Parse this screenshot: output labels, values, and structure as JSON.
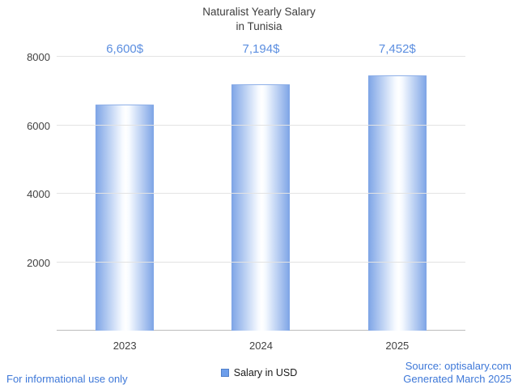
{
  "chart_data": {
    "type": "bar",
    "title": "Naturalist Yearly Salary\nin Tunisia",
    "categories": [
      "2023",
      "2024",
      "2025"
    ],
    "values": [
      6600,
      7194,
      7452
    ],
    "value_labels": [
      "6,600$",
      "7,194$",
      "7,452$"
    ],
    "series": [
      {
        "name": "Salary in USD",
        "values": [
          6600,
          7194,
          7452
        ]
      }
    ],
    "xlabel": "",
    "ylabel": "",
    "ylim": [
      0,
      8000
    ],
    "yticks": [
      2000,
      4000,
      6000,
      8000
    ],
    "grid": true,
    "legend_position": "bottom",
    "colors": {
      "bar_edge": "#7da4e6",
      "bar_center": "#f6faff",
      "value_label": "#5b8ee0",
      "legend_swatch": "#6d9eeb",
      "gridline": "#e3e3e3",
      "baseline": "#bdbdbd",
      "title": "#3d3d3d",
      "axis_text": "#424242"
    }
  },
  "legend": {
    "label": "Salary in USD"
  },
  "footer": {
    "disclaimer": "For informational use only",
    "source": "Source: optisalary.com",
    "generated": "Generated March 2025",
    "link_color": "#3e78d8"
  }
}
